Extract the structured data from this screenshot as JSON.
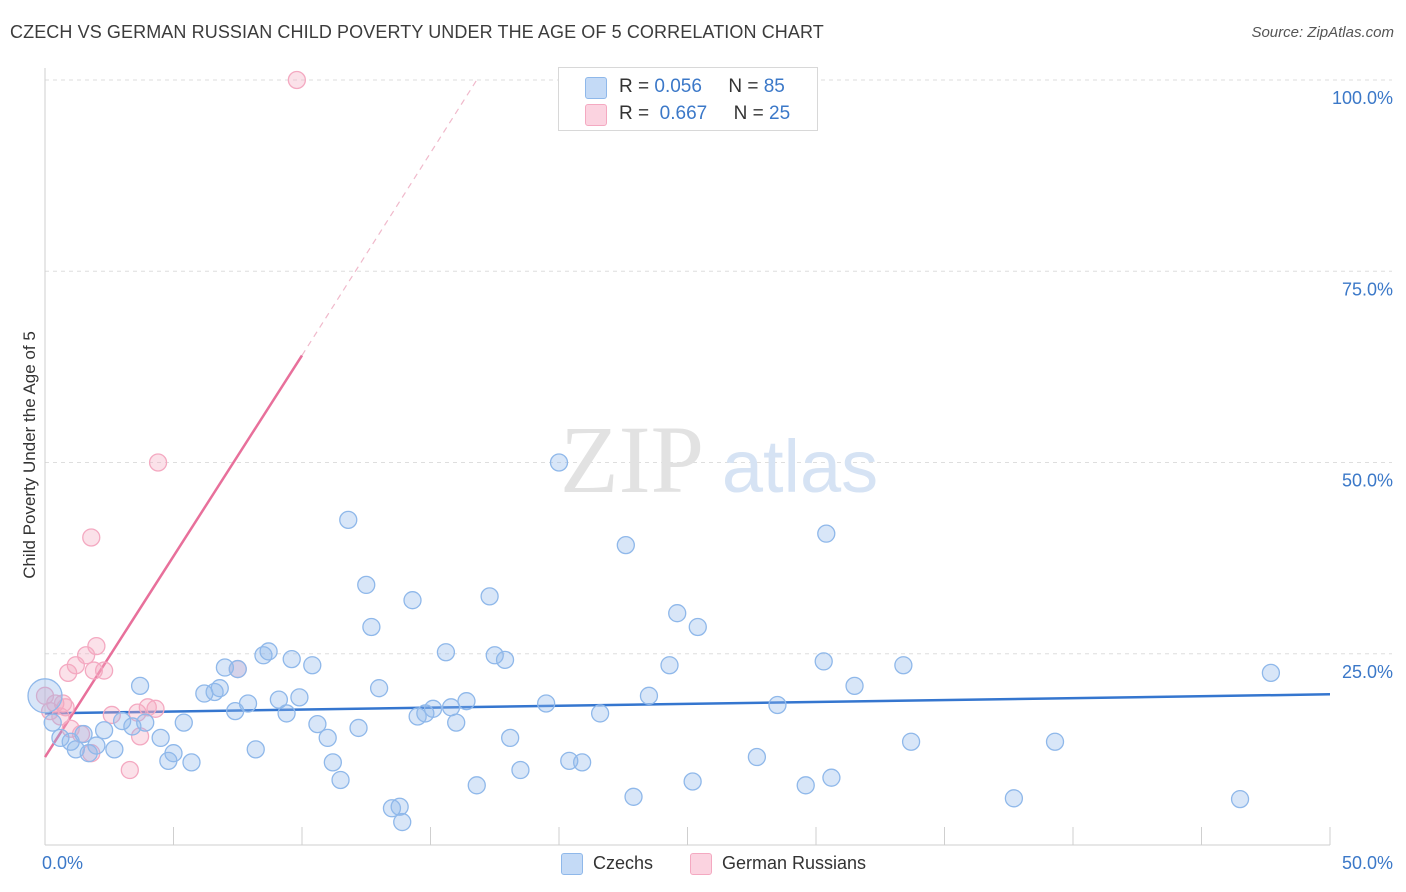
{
  "title": "CZECH VS GERMAN RUSSIAN CHILD POVERTY UNDER THE AGE OF 5 CORRELATION CHART",
  "source": "Source: ZipAtlas.com",
  "watermark": {
    "zip": "ZIP",
    "atlas": "atlas"
  },
  "legend": {
    "r_label": "R =",
    "n_label": "N =",
    "rows": [
      {
        "r": "0.056",
        "n": "85"
      },
      {
        "r": "0.667",
        "n": "25"
      }
    ]
  },
  "chart_data": {
    "type": "scatter",
    "title": "CZECH VS GERMAN RUSSIAN CHILD POVERTY UNDER THE AGE OF 5 CORRELATION CHART",
    "xlabel": "",
    "ylabel": "Child Poverty Under the Age of 5",
    "xlim": [
      0,
      50
    ],
    "ylim": [
      0,
      100
    ],
    "x_tick_labels": [
      {
        "value": 0,
        "label": "0.0%"
      },
      {
        "value": 50,
        "label": "50.0%"
      }
    ],
    "y_tick_labels": [
      {
        "value": 25,
        "label": "25.0%"
      },
      {
        "value": 50,
        "label": "50.0%"
      },
      {
        "value": 75,
        "label": "75.0%"
      },
      {
        "value": 100,
        "label": "100.0%"
      }
    ],
    "series": [
      {
        "name": "Czechs",
        "color": "#8fb8ea",
        "line_color": "#3576cf",
        "r": "0.056",
        "n": "85",
        "trend": {
          "x": [
            0,
            50
          ],
          "y": [
            17.2,
            19.7
          ]
        },
        "points": [
          [
            0.0,
            19.5
          ],
          [
            0.3,
            16.0
          ],
          [
            0.6,
            14.0
          ],
          [
            1.0,
            13.5
          ],
          [
            1.2,
            12.5
          ],
          [
            1.5,
            14.5
          ],
          [
            1.7,
            12.0
          ],
          [
            2.0,
            13.0
          ],
          [
            2.3,
            15.0
          ],
          [
            2.7,
            12.5
          ],
          [
            3.0,
            16.2
          ],
          [
            3.4,
            15.5
          ],
          [
            3.9,
            16.0
          ],
          [
            3.7,
            20.8
          ],
          [
            4.5,
            14.0
          ],
          [
            4.8,
            11.0
          ],
          [
            5.0,
            12.0
          ],
          [
            5.4,
            16.0
          ],
          [
            5.7,
            10.8
          ],
          [
            6.2,
            19.8
          ],
          [
            6.6,
            20.0
          ],
          [
            6.8,
            20.5
          ],
          [
            7.0,
            23.2
          ],
          [
            7.4,
            17.5
          ],
          [
            7.5,
            23.0
          ],
          [
            7.9,
            18.5
          ],
          [
            8.2,
            12.5
          ],
          [
            8.5,
            24.8
          ],
          [
            8.7,
            25.3
          ],
          [
            9.1,
            19.0
          ],
          [
            9.4,
            17.2
          ],
          [
            9.6,
            24.3
          ],
          [
            9.9,
            19.3
          ],
          [
            10.4,
            23.5
          ],
          [
            10.6,
            15.8
          ],
          [
            11.0,
            14.0
          ],
          [
            11.2,
            10.8
          ],
          [
            11.5,
            8.5
          ],
          [
            11.8,
            42.5
          ],
          [
            12.2,
            15.3
          ],
          [
            12.5,
            34.0
          ],
          [
            12.7,
            28.5
          ],
          [
            13.0,
            20.5
          ],
          [
            13.5,
            4.8
          ],
          [
            13.8,
            5.0
          ],
          [
            13.9,
            3.0
          ],
          [
            14.3,
            32.0
          ],
          [
            14.5,
            16.8
          ],
          [
            14.8,
            17.2
          ],
          [
            15.1,
            17.8
          ],
          [
            15.6,
            25.2
          ],
          [
            15.8,
            18.0
          ],
          [
            16.0,
            16.0
          ],
          [
            16.4,
            18.8
          ],
          [
            16.8,
            7.8
          ],
          [
            17.3,
            32.5
          ],
          [
            17.5,
            24.8
          ],
          [
            17.9,
            24.2
          ],
          [
            18.1,
            14.0
          ],
          [
            18.5,
            9.8
          ],
          [
            19.5,
            18.5
          ],
          [
            20.0,
            50.0
          ],
          [
            20.4,
            11.0
          ],
          [
            20.9,
            10.8
          ],
          [
            21.6,
            17.2
          ],
          [
            22.6,
            39.2
          ],
          [
            22.9,
            6.3
          ],
          [
            23.5,
            19.5
          ],
          [
            24.3,
            23.5
          ],
          [
            24.6,
            30.3
          ],
          [
            25.2,
            8.3
          ],
          [
            25.4,
            28.5
          ],
          [
            27.7,
            11.5
          ],
          [
            28.5,
            18.3
          ],
          [
            29.6,
            7.8
          ],
          [
            30.3,
            24.0
          ],
          [
            30.4,
            40.7
          ],
          [
            30.6,
            8.8
          ],
          [
            31.5,
            20.8
          ],
          [
            33.4,
            23.5
          ],
          [
            33.7,
            13.5
          ],
          [
            37.7,
            6.1
          ],
          [
            39.3,
            13.5
          ],
          [
            46.5,
            6.0
          ],
          [
            47.7,
            22.5
          ]
        ]
      },
      {
        "name": "German Russians",
        "color": "#f4a9c1",
        "line_color": "#e8709b",
        "r": "0.667",
        "n": "25",
        "trend": {
          "x": [
            0,
            10
          ],
          "y": [
            11.5,
            64.0
          ]
        },
        "trend_dashed": {
          "x": [
            10,
            16.8
          ],
          "y": [
            64.0,
            100.0
          ]
        },
        "points": [
          [
            0.0,
            19.5
          ],
          [
            0.2,
            17.5
          ],
          [
            0.4,
            18.5
          ],
          [
            0.6,
            16.8
          ],
          [
            0.8,
            18.0
          ],
          [
            0.9,
            22.5
          ],
          [
            1.0,
            15.2
          ],
          [
            1.2,
            23.5
          ],
          [
            1.4,
            14.5
          ],
          [
            1.6,
            24.8
          ],
          [
            1.8,
            12.0
          ],
          [
            1.9,
            22.8
          ],
          [
            2.0,
            26.0
          ],
          [
            2.3,
            22.8
          ],
          [
            2.6,
            17.0
          ],
          [
            3.3,
            9.8
          ],
          [
            3.6,
            17.3
          ],
          [
            4.0,
            18.0
          ],
          [
            4.3,
            17.8
          ],
          [
            4.4,
            50.0
          ],
          [
            1.8,
            40.2
          ],
          [
            7.5,
            23.0
          ],
          [
            9.8,
            100.0
          ],
          [
            0.7,
            18.5
          ],
          [
            3.7,
            14.2
          ]
        ]
      }
    ]
  }
}
